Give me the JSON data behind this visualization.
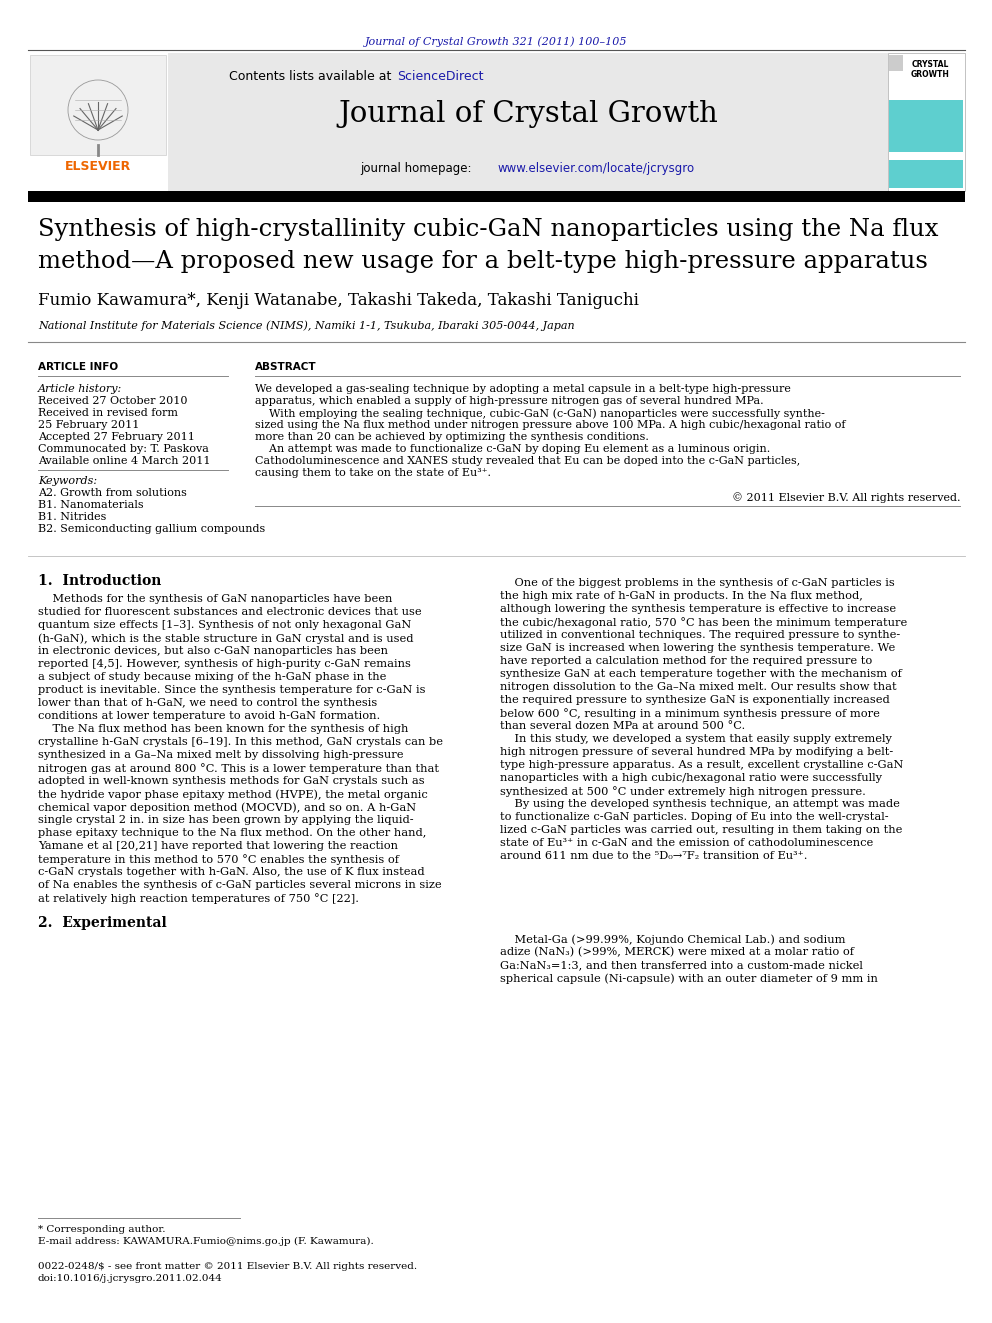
{
  "journal_ref": "Journal of Crystal Growth 321 (2011) 100–105",
  "journal_name": "Journal of Crystal Growth",
  "journal_homepage_static": "journal homepage: ",
  "journal_homepage_link": "www.elsevier.com/locate/jcrysgro",
  "title_line1": "Synthesis of high-crystallinity cubic-GaN nanoparticles using the Na flux",
  "title_line2": "method—A proposed new usage for a belt-type high-pressure apparatus",
  "authors": "Fumio Kawamura*, Kenji Watanabe, Takashi Takeda, Takashi Taniguchi",
  "affiliation": "National Institute for Materials Science (NIMS), Namiki 1-1, Tsukuba, Ibaraki 305-0044, Japan",
  "article_info_label": "ARTICLE INFO",
  "abstract_label": "ABSTRACT",
  "article_history_label": "Article history:",
  "received1": "Received 27 October 2010",
  "received_revised": "Received in revised form",
  "revised_date": "25 February 2011",
  "accepted": "Accepted 27 February 2011",
  "communicated": "Communocated by: T. Paskova",
  "available": "Available online 4 March 2011",
  "keywords_label": "Keywords:",
  "keywords": [
    "A2. Growth from solutions",
    "B1. Nanomaterials",
    "B1. Nitrides",
    "B2. Semiconducting gallium compounds"
  ],
  "abstract_lines": [
    "We developed a gas-sealing technique by adopting a metal capsule in a belt-type high-pressure",
    "apparatus, which enabled a supply of high-pressure nitrogen gas of several hundred MPa.",
    "    With employing the sealing technique, cubic-GaN (c-GaN) nanoparticles were successfully synthe-",
    "sized using the Na flux method under nitrogen pressure above 100 MPa. A high cubic/hexagonal ratio of",
    "more than 20 can be achieved by optimizing the synthesis conditions.",
    "    An attempt was made to functionalize c-GaN by doping Eu element as a luminous origin.",
    "Cathodoluminescence and XANES study revealed that Eu can be doped into the c-GaN particles,",
    "causing them to take on the state of Eu³⁺.",
    "",
    "© 2011 Elsevier B.V. All rights reserved."
  ],
  "section1_title": "1.  Introduction",
  "intro_col1_lines": [
    "    Methods for the synthesis of GaN nanoparticles have been",
    "studied for fluorescent substances and electronic devices that use",
    "quantum size effects [1–3]. Synthesis of not only hexagonal GaN",
    "(h-GaN), which is the stable structure in GaN crystal and is used",
    "in electronic devices, but also c-GaN nanoparticles has been",
    "reported [4,5]. However, synthesis of high-purity c-GaN remains",
    "a subject of study because mixing of the h-GaN phase in the",
    "product is inevitable. Since the synthesis temperature for c-GaN is",
    "lower than that of h-GaN, we need to control the synthesis",
    "conditions at lower temperature to avoid h-GaN formation.",
    "    The Na flux method has been known for the synthesis of high",
    "crystalline h-GaN crystals [6–19]. In this method, GaN crystals can be",
    "synthesized in a Ga–Na mixed melt by dissolving high-pressure",
    "nitrogen gas at around 800 °C. This is a lower temperature than that",
    "adopted in well-known synthesis methods for GaN crystals such as",
    "the hydride vapor phase epitaxy method (HVPE), the metal organic",
    "chemical vapor deposition method (MOCVD), and so on. A h-GaN",
    "single crystal 2 in. in size has been grown by applying the liquid-",
    "phase epitaxy technique to the Na flux method. On the other hand,",
    "Yamane et al [20,21] have reported that lowering the reaction",
    "temperature in this method to 570 °C enables the synthesis of",
    "c-GaN crystals together with h-GaN. Also, the use of K flux instead",
    "of Na enables the synthesis of c-GaN particles several microns in size",
    "at relatively high reaction temperatures of 750 °C [22]."
  ],
  "intro_col2_lines": [
    "    One of the biggest problems in the synthesis of c-GaN particles is",
    "the high mix rate of h-GaN in products. In the Na flux method,",
    "although lowering the synthesis temperature is effective to increase",
    "the cubic/hexagonal ratio, 570 °C has been the minimum temperature",
    "utilized in conventional techniques. The required pressure to synthe-",
    "size GaN is increased when lowering the synthesis temperature. We",
    "have reported a calculation method for the required pressure to",
    "synthesize GaN at each temperature together with the mechanism of",
    "nitrogen dissolution to the Ga–Na mixed melt. Our results show that",
    "the required pressure to synthesize GaN is exponentially increased",
    "below 600 °C, resulting in a minimum synthesis pressure of more",
    "than several dozen MPa at around 500 °C.",
    "    In this study, we developed a system that easily supply extremely",
    "high nitrogen pressure of several hundred MPa by modifying a belt-",
    "type high-pressure apparatus. As a result, excellent crystalline c-GaN",
    "nanoparticles with a high cubic/hexagonal ratio were successfully",
    "synthesized at 500 °C under extremely high nitrogen pressure.",
    "    By using the developed synthesis technique, an attempt was made",
    "to functionalize c-GaN particles. Doping of Eu into the well-crystal-",
    "lized c-GaN particles was carried out, resulting in them taking on the",
    "state of Eu³⁺ in c-GaN and the emission of cathodoluminescence",
    "around 611 nm due to the ⁵D₀→⁷F₂ transition of Eu³⁺."
  ],
  "section2_title": "2.  Experimental",
  "section2_lines": [
    "    Metal-Ga (>99.99%, Kojundo Chemical Lab.) and sodium",
    "adize (NaN₃) (>99%, MERCK) were mixed at a molar ratio of",
    "Ga:NaN₃=1:3, and then transferred into a custom-made nickel",
    "spherical capsule (Ni-capsule) with an outer diameter of 9 mm in"
  ],
  "footer1": "* Corresponding author.",
  "footer2": "E-mail address: KAWAMURA.Fumio@nims.go.jp (F. Kawamura).",
  "footer3": "0022-0248/$ - see front matter © 2011 Elsevier B.V. All rights reserved.",
  "footer4": "doi:10.1016/j.jcrysgro.2011.02.044",
  "bg_header": "#e8e8e8",
  "bg_white": "#ffffff",
  "bg_cyan": "#5ecfcf",
  "color_blue": "#1a1aaa",
  "color_orange": "#ee6600",
  "color_black": "#000000"
}
